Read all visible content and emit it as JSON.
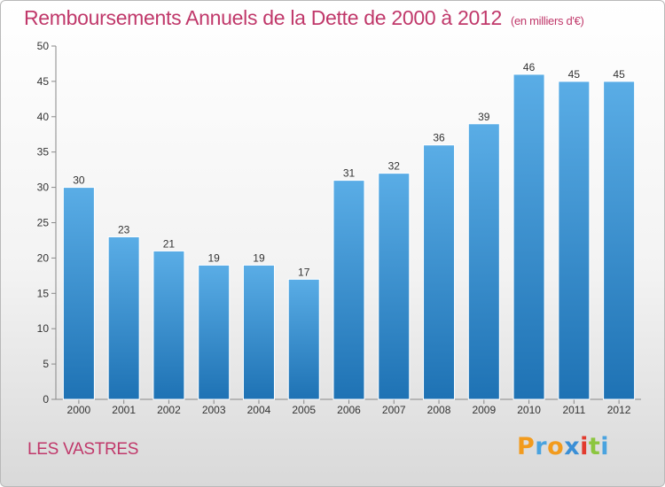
{
  "chart_data": {
    "type": "bar",
    "title": "Remboursements Annuels de la Dette de 2000 à 2012",
    "unit_label": "(en milliers d'€)",
    "categories": [
      "2000",
      "2001",
      "2002",
      "2003",
      "2004",
      "2005",
      "2006",
      "2007",
      "2008",
      "2009",
      "2010",
      "2011",
      "2012"
    ],
    "values": [
      30,
      23,
      21,
      19,
      19,
      17,
      31,
      32,
      36,
      39,
      46,
      45,
      45
    ],
    "ylim": [
      0,
      50
    ],
    "yticks": [
      0,
      5,
      10,
      15,
      20,
      25,
      30,
      35,
      40,
      45,
      50
    ],
    "grid": false,
    "bar_color_top": "#5aade6",
    "bar_color_bottom": "#1e72b4"
  },
  "footer": {
    "commune": "LES VASTRES",
    "logo_letters": [
      {
        "ch": "P",
        "color": "#f29b1d"
      },
      {
        "ch": "r",
        "color": "#4aa3df"
      },
      {
        "ch": "o",
        "color": "#f29b1d"
      },
      {
        "ch": "x",
        "color": "#3a8fd6"
      },
      {
        "ch": "i",
        "color": "#e23b2e"
      },
      {
        "ch": "t",
        "color": "#8cc63f"
      },
      {
        "ch": "i",
        "color": "#4aa3df"
      }
    ]
  }
}
